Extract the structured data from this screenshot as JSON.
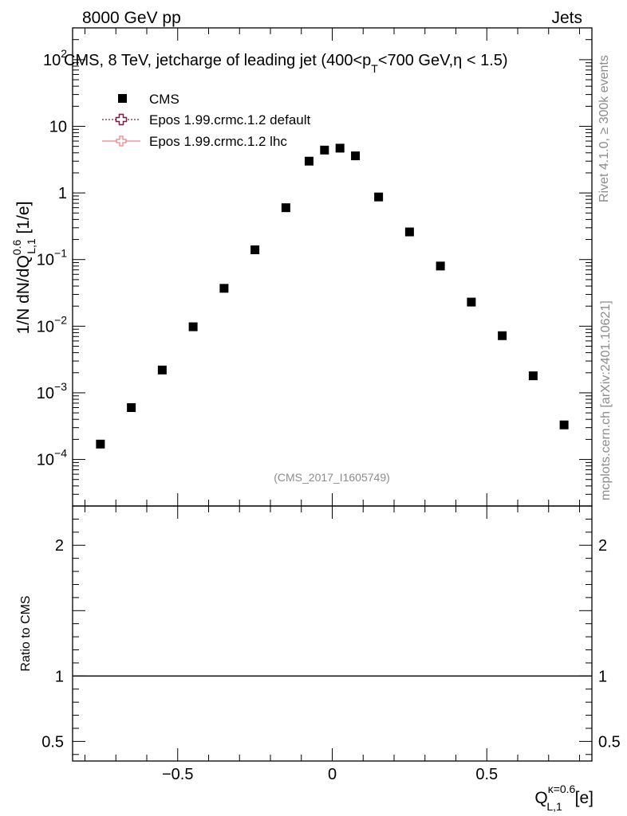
{
  "header": {
    "left": "8000 GeV pp",
    "right": "Jets"
  },
  "side_labels": {
    "rivet": "Rivet 4.1.0, ≥ 300k events",
    "mcplots": "mcplots.cern.ch [arXiv:2401.10621]"
  },
  "chart_data": {
    "type": "scatter",
    "title_parts": {
      "a": "CMS, 8 TeV, jetcharge of leading jet (400<p",
      "sub": "T",
      "b": "<700 GeV,η < 1.5)"
    },
    "watermark": "(CMS_2017_I1605749)",
    "ylabel": {
      "main": "1/N dN/dQ",
      "sup": "0.6",
      "sub": "L,1",
      "unit": " [1/e]"
    },
    "xlabel": {
      "main": "Q",
      "sup": "κ=0.6",
      "sub": "L,1",
      "unit": " [e]"
    },
    "ratio_ylabel": "Ratio to CMS",
    "xlim": [
      -0.84,
      0.84
    ],
    "ylim": [
      2e-05,
      300
    ],
    "yscale": "log",
    "ratio_ylim": [
      0.35,
      2.3
    ],
    "x_ticks": [
      {
        "v": -0.5,
        "label": "−0.5"
      },
      {
        "v": 0,
        "label": "0"
      },
      {
        "v": 0.5,
        "label": "0.5"
      }
    ],
    "y_ticks": [
      {
        "v": 0.0001,
        "base": "10",
        "exp": "−4"
      },
      {
        "v": 0.001,
        "base": "10",
        "exp": "−3"
      },
      {
        "v": 0.01,
        "base": "10",
        "exp": "−2"
      },
      {
        "v": 0.1,
        "base": "10",
        "exp": "−1"
      },
      {
        "v": 1,
        "base": "1",
        "exp": ""
      },
      {
        "v": 10,
        "base": "10",
        "exp": ""
      },
      {
        "v": 100,
        "base": "10",
        "exp": "2"
      }
    ],
    "ratio_ticks": [
      {
        "v": 0.5,
        "label": "0.5"
      },
      {
        "v": 1,
        "label": "1"
      },
      {
        "v": 2,
        "label": "2"
      }
    ],
    "legend": [
      {
        "name": "CMS",
        "style": "square",
        "color": "#000000"
      },
      {
        "name": "Epos 1.99.crmc.1.2 default",
        "style": "open-cross-dotted",
        "color": "#7b1e3c"
      },
      {
        "name": "Epos 1.99.crmc.1.2 lhc",
        "style": "cross-solid",
        "color": "#f08080"
      }
    ],
    "series": [
      {
        "name": "CMS",
        "x": [
          -0.75,
          -0.65,
          -0.55,
          -0.45,
          -0.35,
          -0.25,
          -0.15,
          -0.075,
          -0.025,
          0.025,
          0.075,
          0.15,
          0.25,
          0.35,
          0.45,
          0.55,
          0.65,
          0.75
        ],
        "y": [
          0.00017,
          0.0006,
          0.0022,
          0.0098,
          0.037,
          0.14,
          0.6,
          3.0,
          4.4,
          4.7,
          3.6,
          0.87,
          0.26,
          0.08,
          0.023,
          0.0072,
          0.0018,
          0.00033
        ]
      }
    ]
  }
}
